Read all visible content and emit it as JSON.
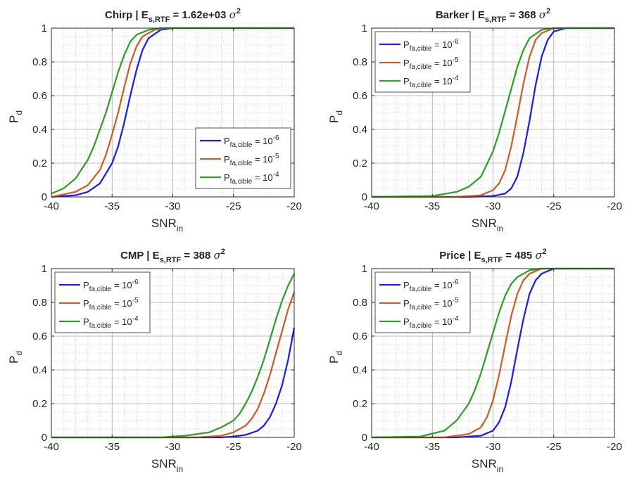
{
  "chart_data": [
    {
      "type": "line",
      "title": {
        "name": "Chirp",
        "sep": " | E",
        "sub": "s,RTF",
        "eq": " = 1.62e+03 ",
        "sigma": "σ",
        "sup": "2"
      },
      "xlabel": {
        "main": "SNR",
        "sub": "in"
      },
      "ylabel": {
        "main": "P",
        "sub": "d"
      },
      "xlim": [
        -40,
        -20
      ],
      "ylim": [
        0,
        1
      ],
      "xticks": [
        "-40",
        "-35",
        "-30",
        "-25",
        "-20"
      ],
      "yticks": [
        "0",
        "0.2",
        "0.4",
        "0.6",
        "0.8",
        "1"
      ],
      "grid": true,
      "minor_grid": true,
      "legend_position": "bottom-right",
      "series": [
        {
          "name": {
            "main": "P",
            "sub": "fa,cible",
            "eq": " = 10",
            "sup": "-6"
          },
          "color": "#2222dd",
          "x": [
            -40,
            -38,
            -37,
            -36,
            -35,
            -34.5,
            -34,
            -33.5,
            -33,
            -32.5,
            -32,
            -31,
            -30,
            -20
          ],
          "y": [
            0,
            0.01,
            0.03,
            0.08,
            0.2,
            0.3,
            0.44,
            0.6,
            0.75,
            0.87,
            0.94,
            0.99,
            1,
            1
          ]
        },
        {
          "name": {
            "main": "P",
            "sub": "fa,cible",
            "eq": " = 10",
            "sup": "-5"
          },
          "color": "#c8622a",
          "x": [
            -40,
            -38,
            -37,
            -36,
            -35.5,
            -35,
            -34.5,
            -34,
            -33.5,
            -33,
            -32.5,
            -31.5,
            -30.5,
            -20
          ],
          "y": [
            0,
            0.03,
            0.07,
            0.16,
            0.25,
            0.37,
            0.5,
            0.65,
            0.79,
            0.89,
            0.95,
            0.99,
            1,
            1
          ]
        },
        {
          "name": {
            "main": "P",
            "sub": "fa,cible",
            "eq": " = 10",
            "sup": "-4"
          },
          "color": "#33a02c",
          "x": [
            -40,
            -39,
            -38,
            -37,
            -36.5,
            -36,
            -35.5,
            -35,
            -34.5,
            -34,
            -33.5,
            -33,
            -32,
            -31,
            -20
          ],
          "y": [
            0.02,
            0.05,
            0.11,
            0.22,
            0.3,
            0.4,
            0.5,
            0.62,
            0.74,
            0.84,
            0.92,
            0.96,
            0.99,
            1,
            1
          ]
        }
      ]
    },
    {
      "type": "line",
      "title": {
        "name": "Barker",
        "sep": " | E",
        "sub": "s,RTF",
        "eq": " = 368 ",
        "sigma": "σ",
        "sup": "2"
      },
      "xlabel": {
        "main": "SNR",
        "sub": "in"
      },
      "ylabel": {
        "main": "P",
        "sub": "d"
      },
      "xlim": [
        -40,
        -20
      ],
      "ylim": [
        0,
        1
      ],
      "xticks": [
        "-40",
        "-35",
        "-30",
        "-25",
        "-20"
      ],
      "yticks": [
        "0",
        "0.2",
        "0.4",
        "0.6",
        "0.8",
        "1"
      ],
      "grid": true,
      "minor_grid": true,
      "legend_position": "top-left",
      "series": [
        {
          "name": {
            "main": "P",
            "sub": "fa,cible",
            "eq": " = 10",
            "sup": "-6"
          },
          "color": "#2222dd",
          "x": [
            -40,
            -32,
            -30,
            -29,
            -28.5,
            -28,
            -27.5,
            -27,
            -26.5,
            -26,
            -25.5,
            -25,
            -24,
            -20
          ],
          "y": [
            0,
            0,
            0.005,
            0.02,
            0.05,
            0.12,
            0.26,
            0.45,
            0.66,
            0.83,
            0.93,
            0.98,
            1,
            1
          ]
        },
        {
          "name": {
            "main": "P",
            "sub": "fa,cible",
            "eq": " = 10",
            "sup": "-5"
          },
          "color": "#c8622a",
          "x": [
            -40,
            -33,
            -31,
            -30,
            -29.5,
            -29,
            -28.5,
            -28,
            -27.5,
            -27,
            -26.5,
            -26,
            -25,
            -20
          ],
          "y": [
            0,
            0,
            0.01,
            0.04,
            0.08,
            0.16,
            0.3,
            0.48,
            0.67,
            0.83,
            0.93,
            0.97,
            1,
            1
          ]
        },
        {
          "name": {
            "main": "P",
            "sub": "fa,cible",
            "eq": " = 10",
            "sup": "-4"
          },
          "color": "#33a02c",
          "x": [
            -40,
            -35,
            -33,
            -32,
            -31,
            -30,
            -29.5,
            -29,
            -28.5,
            -28,
            -27.5,
            -27,
            -26,
            -25,
            -20
          ],
          "y": [
            0,
            0.005,
            0.03,
            0.06,
            0.12,
            0.27,
            0.38,
            0.51,
            0.64,
            0.77,
            0.87,
            0.94,
            0.99,
            1,
            1
          ]
        }
      ]
    },
    {
      "type": "line",
      "title": {
        "name": "CMP",
        "sep": " | E",
        "sub": "s,RTF",
        "eq": " = 388 ",
        "sigma": "σ",
        "sup": "2"
      },
      "xlabel": {
        "main": "SNR",
        "sub": "in"
      },
      "ylabel": {
        "main": "P",
        "sub": "d"
      },
      "xlim": [
        -40,
        -20
      ],
      "ylim": [
        0,
        1
      ],
      "xticks": [
        "-40",
        "-35",
        "-30",
        "-25",
        "-20"
      ],
      "yticks": [
        "0",
        "0.2",
        "0.4",
        "0.6",
        "0.8",
        "1"
      ],
      "grid": true,
      "minor_grid": true,
      "legend_position": "top-left",
      "series": [
        {
          "name": {
            "main": "P",
            "sub": "fa,cible",
            "eq": " = 10",
            "sup": "-6"
          },
          "color": "#2222dd",
          "x": [
            -40,
            -26,
            -25,
            -24,
            -23,
            -22.5,
            -22,
            -21.5,
            -21,
            -20.5,
            -20
          ],
          "y": [
            0,
            0,
            0.005,
            0.015,
            0.04,
            0.07,
            0.12,
            0.2,
            0.31,
            0.46,
            0.65
          ]
        },
        {
          "name": {
            "main": "P",
            "sub": "fa,cible",
            "eq": " = 10",
            "sup": "-5"
          },
          "color": "#c8622a",
          "x": [
            -40,
            -28,
            -26,
            -25,
            -24,
            -23.5,
            -23,
            -22.5,
            -22,
            -21.5,
            -21,
            -20.5,
            -20
          ],
          "y": [
            0,
            0,
            0.01,
            0.03,
            0.07,
            0.11,
            0.17,
            0.26,
            0.37,
            0.5,
            0.63,
            0.76,
            0.86
          ]
        },
        {
          "name": {
            "main": "P",
            "sub": "fa,cible",
            "eq": " = 10",
            "sup": "-4"
          },
          "color": "#33a02c",
          "x": [
            -40,
            -31,
            -29,
            -27,
            -26,
            -25,
            -24.5,
            -24,
            -23.5,
            -23,
            -22.5,
            -22,
            -21.5,
            -21,
            -20.5,
            -20
          ],
          "y": [
            0,
            0,
            0.01,
            0.03,
            0.06,
            0.1,
            0.14,
            0.2,
            0.27,
            0.36,
            0.46,
            0.58,
            0.7,
            0.81,
            0.9,
            0.97
          ]
        }
      ]
    },
    {
      "type": "line",
      "title": {
        "name": "Price",
        "sep": " | E",
        "sub": "s,RTF",
        "eq": " = 485 ",
        "sigma": "σ",
        "sup": "2"
      },
      "xlabel": {
        "main": "SNR",
        "sub": "in"
      },
      "ylabel": {
        "main": "P",
        "sub": "d"
      },
      "xlim": [
        -40,
        -20
      ],
      "ylim": [
        0,
        1
      ],
      "xticks": [
        "-40",
        "-35",
        "-30",
        "-25",
        "-20"
      ],
      "yticks": [
        "0",
        "0.2",
        "0.4",
        "0.6",
        "0.8",
        "1"
      ],
      "grid": true,
      "minor_grid": true,
      "legend_position": "top-left",
      "series": [
        {
          "name": {
            "main": "P",
            "sub": "fa,cible",
            "eq": " = 10",
            "sup": "-6"
          },
          "color": "#2222dd",
          "x": [
            -40,
            -33,
            -31,
            -30,
            -29.5,
            -29,
            -28.5,
            -28,
            -27.5,
            -27,
            -26.5,
            -26,
            -25,
            -20
          ],
          "y": [
            0,
            0,
            0.01,
            0.04,
            0.09,
            0.18,
            0.33,
            0.52,
            0.7,
            0.85,
            0.93,
            0.97,
            1,
            1
          ]
        },
        {
          "name": {
            "main": "P",
            "sub": "fa,cible",
            "eq": " = 10",
            "sup": "-5"
          },
          "color": "#c8622a",
          "x": [
            -40,
            -34,
            -32,
            -31,
            -30.5,
            -30,
            -29.5,
            -29,
            -28.5,
            -28,
            -27.5,
            -27,
            -26,
            -20
          ],
          "y": [
            0,
            0,
            0.02,
            0.06,
            0.12,
            0.22,
            0.37,
            0.55,
            0.72,
            0.85,
            0.93,
            0.97,
            1,
            1
          ]
        },
        {
          "name": {
            "main": "P",
            "sub": "fa,cible",
            "eq": " = 10",
            "sup": "-4"
          },
          "color": "#33a02c",
          "x": [
            -40,
            -36,
            -34,
            -33,
            -32,
            -31.5,
            -31,
            -30.5,
            -30,
            -29.5,
            -29,
            -28.5,
            -28,
            -27,
            -26,
            -20
          ],
          "y": [
            0,
            0.005,
            0.04,
            0.1,
            0.2,
            0.28,
            0.38,
            0.5,
            0.62,
            0.74,
            0.84,
            0.91,
            0.95,
            0.99,
            1,
            1
          ]
        }
      ]
    }
  ]
}
